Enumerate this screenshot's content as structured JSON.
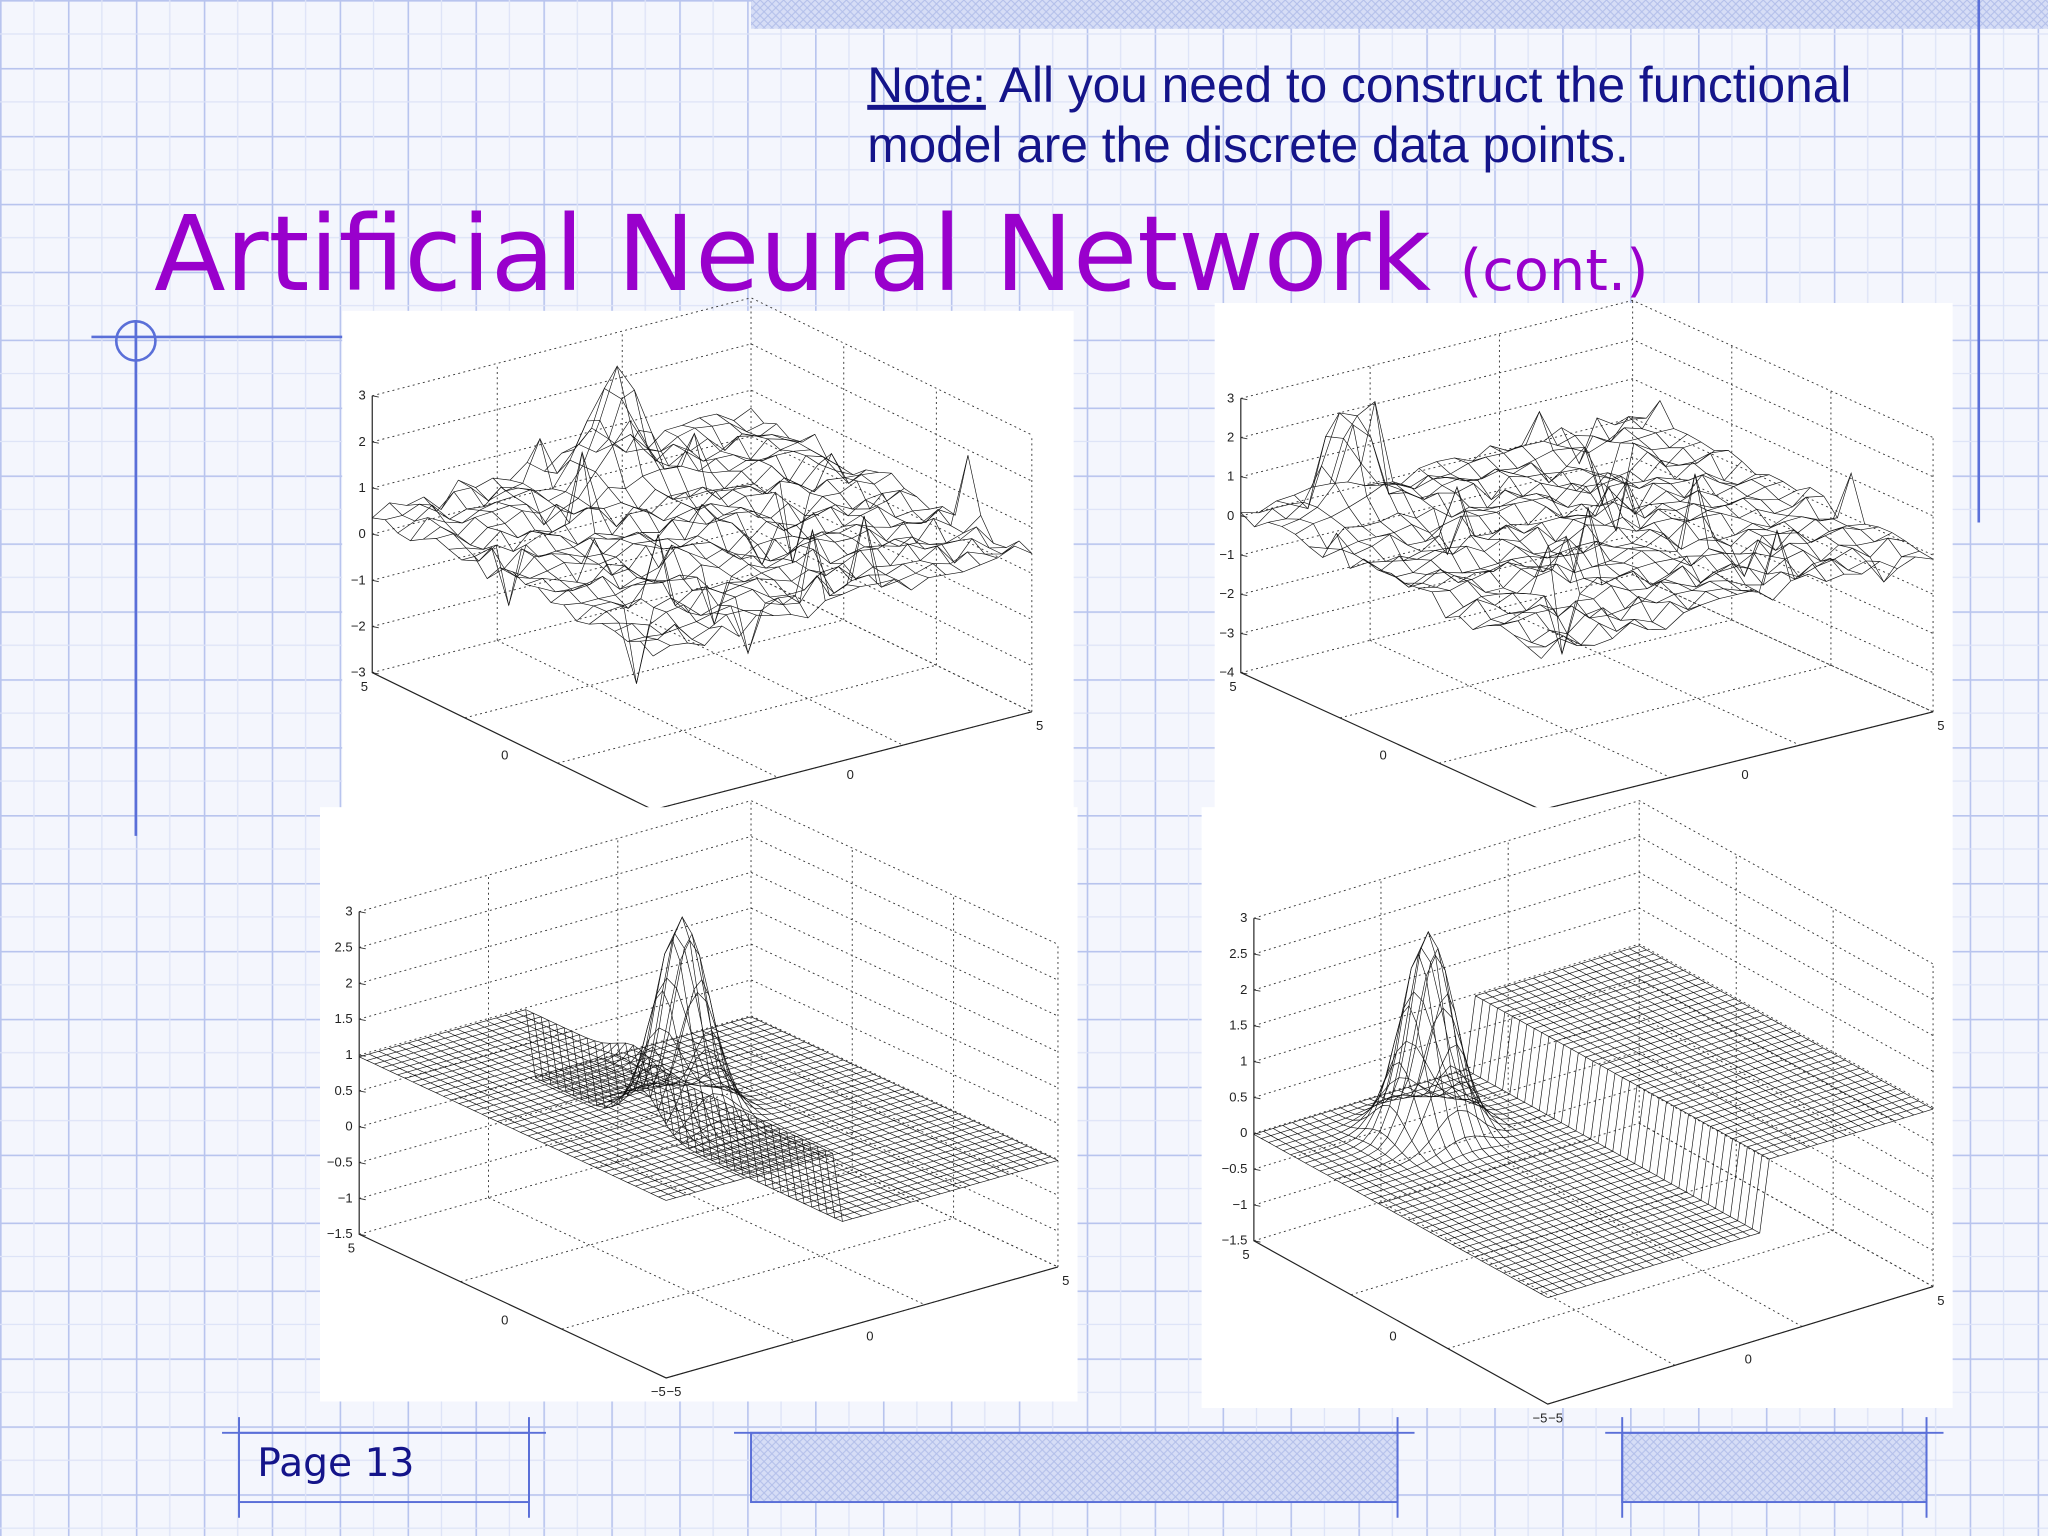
{
  "note": {
    "label": "Note:",
    "lines": [
      "All you need to construct the functional",
      "model are the discrete data points."
    ]
  },
  "title": {
    "main": "Artificial Neural Network",
    "suffix": "(cont.)"
  },
  "plots": [
    {
      "z_ticks": [
        "3",
        "2",
        "1",
        "0",
        "−1",
        "−2",
        "−3"
      ],
      "left_ticks": [
        "5",
        "0"
      ],
      "right_ticks": [
        "5",
        "0"
      ]
    },
    {
      "z_ticks": [
        "3",
        "2",
        "1",
        "0",
        "−1",
        "−2",
        "−3",
        "−4"
      ],
      "left_ticks": [
        "5",
        "0"
      ],
      "right_ticks": [
        "5",
        "0"
      ]
    },
    {
      "z_ticks": [
        "3",
        "2.5",
        "2",
        "1.5",
        "1",
        "0.5",
        "0",
        "−0.5",
        "−1",
        "−1.5"
      ],
      "left_ticks": [
        "5",
        "0",
        "−5"
      ],
      "right_ticks": [
        "5",
        "0",
        "−5"
      ]
    },
    {
      "z_ticks": [
        "3",
        "2.5",
        "2",
        "1.5",
        "1",
        "0.5",
        "0",
        "−0.5",
        "−1",
        "−1.5"
      ],
      "left_ticks": [
        "5",
        "0",
        "−5"
      ],
      "right_ticks": [
        "5",
        "0",
        "−5"
      ]
    }
  ],
  "footer": {
    "page": "Page 13"
  }
}
